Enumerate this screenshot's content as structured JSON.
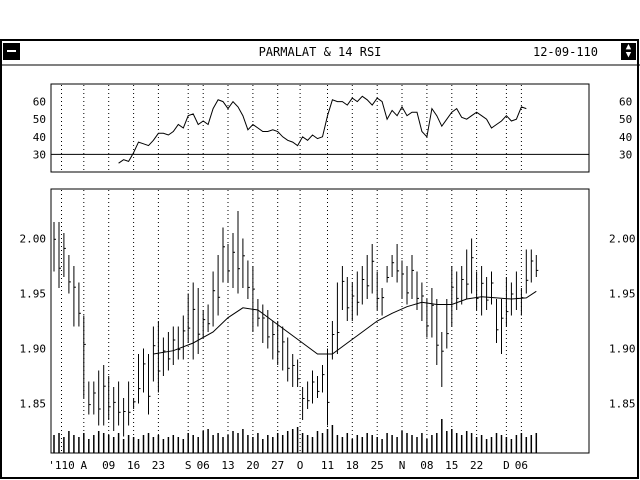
{
  "window": {
    "title": "PARMALAT & 14 RSI",
    "date": "12-09-110",
    "menu_icon": "system-menu-icon",
    "scroll_icon": "up-down-arrows-icon"
  },
  "chart_data": [
    {
      "type": "line",
      "panel": "rsi",
      "ylim": [
        20,
        70
      ],
      "yticks": [
        60,
        50,
        40,
        30
      ],
      "reference_line": 30,
      "x_range": [
        0,
        107
      ],
      "series": [
        {
          "values": [
            [
              13,
              25
            ],
            [
              14,
              27
            ],
            [
              15,
              26
            ],
            [
              16,
              31
            ],
            [
              17,
              37
            ],
            [
              18,
              36
            ],
            [
              19,
              35
            ],
            [
              20,
              38
            ],
            [
              21,
              42
            ],
            [
              22,
              42
            ],
            [
              23,
              41
            ],
            [
              24,
              43
            ],
            [
              25,
              47
            ],
            [
              26,
              45
            ],
            [
              27,
              52
            ],
            [
              28,
              53
            ],
            [
              29,
              47
            ],
            [
              30,
              49
            ],
            [
              31,
              47
            ],
            [
              32,
              56
            ],
            [
              33,
              61
            ],
            [
              34,
              60
            ],
            [
              35,
              56
            ],
            [
              36,
              60
            ],
            [
              37,
              57
            ],
            [
              38,
              52
            ],
            [
              39,
              44
            ],
            [
              40,
              47
            ],
            [
              41,
              45
            ],
            [
              42,
              43
            ],
            [
              43,
              43
            ],
            [
              44,
              44
            ],
            [
              45,
              43
            ],
            [
              46,
              40
            ],
            [
              47,
              38
            ],
            [
              48,
              37
            ],
            [
              49,
              35
            ],
            [
              50,
              40
            ],
            [
              51,
              38
            ],
            [
              52,
              41
            ],
            [
              53,
              39
            ],
            [
              54,
              40
            ],
            [
              55,
              52
            ],
            [
              56,
              61
            ],
            [
              57,
              60
            ],
            [
              58,
              60
            ],
            [
              59,
              58
            ],
            [
              60,
              62
            ],
            [
              61,
              60
            ],
            [
              62,
              63
            ],
            [
              63,
              61
            ],
            [
              64,
              58
            ],
            [
              65,
              62
            ],
            [
              66,
              60
            ],
            [
              67,
              50
            ],
            [
              68,
              55
            ],
            [
              69,
              52
            ],
            [
              70,
              57
            ],
            [
              71,
              52
            ],
            [
              72,
              54
            ],
            [
              73,
              54
            ],
            [
              74,
              43
            ],
            [
              75,
              40
            ],
            [
              76,
              56
            ],
            [
              77,
              52
            ],
            [
              78,
              46
            ],
            [
              79,
              50
            ],
            [
              80,
              54
            ],
            [
              81,
              56
            ],
            [
              82,
              51
            ],
            [
              83,
              50
            ],
            [
              84,
              52
            ],
            [
              85,
              54
            ],
            [
              86,
              52
            ],
            [
              87,
              50
            ],
            [
              88,
              45
            ],
            [
              89,
              47
            ],
            [
              90,
              49
            ],
            [
              91,
              52
            ],
            [
              92,
              49
            ],
            [
              93,
              50
            ],
            [
              94,
              57
            ],
            [
              95,
              56
            ]
          ]
        }
      ]
    },
    {
      "type": "ohlc",
      "panel": "price",
      "ylim": [
        1.805,
        2.045
      ],
      "yticks": [
        "2.00",
        "1.95",
        "1.90",
        "1.85"
      ],
      "x_range": [
        0,
        107
      ],
      "xtick_labels": [
        {
          "label": "'110",
          "x": 1.5
        },
        {
          "label": "A",
          "x": 6
        },
        {
          "label": "09",
          "x": 11
        },
        {
          "label": "16",
          "x": 16
        },
        {
          "label": "23",
          "x": 21
        },
        {
          "label": "S",
          "x": 27
        },
        {
          "label": "06",
          "x": 30
        },
        {
          "label": "13",
          "x": 35
        },
        {
          "label": "20",
          "x": 40
        },
        {
          "label": "27",
          "x": 45
        },
        {
          "label": "O",
          "x": 49.5
        },
        {
          "label": "11",
          "x": 55
        },
        {
          "label": "18",
          "x": 60
        },
        {
          "label": "25",
          "x": 65
        },
        {
          "label": "N",
          "x": 70
        },
        {
          "label": "08",
          "x": 75
        },
        {
          "label": "15",
          "x": 80
        },
        {
          "label": "22",
          "x": 85
        },
        {
          "label": "D",
          "x": 91
        },
        {
          "label": "06",
          "x": 94
        }
      ],
      "bars": [
        [
          0,
          1.97,
          2.015
        ],
        [
          1,
          1.955,
          2.015
        ],
        [
          2,
          1.965,
          2.005
        ],
        [
          3,
          1.95,
          1.985
        ],
        [
          4,
          1.92,
          1.975
        ],
        [
          5,
          1.92,
          1.96
        ],
        [
          6,
          1.855,
          1.93
        ],
        [
          7,
          1.84,
          1.87
        ],
        [
          8,
          1.84,
          1.87
        ],
        [
          9,
          1.83,
          1.88
        ],
        [
          10,
          1.83,
          1.885
        ],
        [
          11,
          1.835,
          1.875
        ],
        [
          12,
          1.825,
          1.865
        ],
        [
          13,
          1.83,
          1.87
        ],
        [
          14,
          1.82,
          1.855
        ],
        [
          15,
          1.83,
          1.87
        ],
        [
          16,
          1.845,
          1.855
        ],
        [
          17,
          1.85,
          1.895
        ],
        [
          18,
          1.86,
          1.9
        ],
        [
          19,
          1.84,
          1.895
        ],
        [
          20,
          1.87,
          1.92
        ],
        [
          21,
          1.86,
          1.925
        ],
        [
          22,
          1.875,
          1.91
        ],
        [
          23,
          1.88,
          1.915
        ],
        [
          24,
          1.885,
          1.92
        ],
        [
          25,
          1.89,
          1.92
        ],
        [
          26,
          1.89,
          1.93
        ],
        [
          27,
          1.905,
          1.95
        ],
        [
          28,
          1.89,
          1.96
        ],
        [
          29,
          1.895,
          1.955
        ],
        [
          30,
          1.91,
          1.935
        ],
        [
          31,
          1.915,
          1.94
        ],
        [
          32,
          1.92,
          1.97
        ],
        [
          33,
          1.93,
          1.985
        ],
        [
          34,
          1.96,
          2.01
        ],
        [
          35,
          1.96,
          1.995
        ],
        [
          36,
          1.955,
          2.005
        ],
        [
          37,
          1.95,
          2.025
        ],
        [
          38,
          1.955,
          2.0
        ],
        [
          39,
          1.945,
          1.98
        ],
        [
          40,
          1.915,
          1.975
        ],
        [
          41,
          1.92,
          1.945
        ],
        [
          42,
          1.905,
          1.94
        ],
        [
          43,
          1.9,
          1.935
        ],
        [
          44,
          1.89,
          1.925
        ],
        [
          45,
          1.885,
          1.925
        ],
        [
          46,
          1.88,
          1.92
        ],
        [
          47,
          1.87,
          1.91
        ],
        [
          48,
          1.865,
          1.895
        ],
        [
          49,
          1.865,
          1.89
        ],
        [
          50,
          1.835,
          1.865
        ],
        [
          51,
          1.845,
          1.87
        ],
        [
          52,
          1.85,
          1.88
        ],
        [
          53,
          1.855,
          1.875
        ],
        [
          54,
          1.86,
          1.885
        ],
        [
          55,
          1.83,
          1.9
        ],
        [
          56,
          1.89,
          1.925
        ],
        [
          57,
          1.895,
          1.96
        ],
        [
          58,
          1.935,
          1.975
        ],
        [
          59,
          1.925,
          1.965
        ],
        [
          60,
          1.925,
          1.96
        ],
        [
          61,
          1.93,
          1.97
        ],
        [
          62,
          1.94,
          1.975
        ],
        [
          63,
          1.945,
          1.985
        ],
        [
          64,
          1.95,
          1.995
        ],
        [
          65,
          1.935,
          1.97
        ],
        [
          66,
          1.93,
          1.955
        ],
        [
          67,
          1.96,
          1.975
        ],
        [
          68,
          1.965,
          1.985
        ],
        [
          69,
          1.96,
          1.995
        ],
        [
          70,
          1.945,
          1.98
        ],
        [
          71,
          1.94,
          1.975
        ],
        [
          72,
          1.945,
          1.985
        ],
        [
          73,
          1.935,
          1.97
        ],
        [
          74,
          1.925,
          1.96
        ],
        [
          75,
          1.91,
          1.945
        ],
        [
          76,
          1.91,
          1.955
        ],
        [
          77,
          1.885,
          1.945
        ],
        [
          78,
          1.865,
          1.915
        ],
        [
          79,
          1.9,
          1.945
        ],
        [
          80,
          1.92,
          1.975
        ],
        [
          81,
          1.935,
          1.97
        ],
        [
          82,
          1.94,
          1.975
        ],
        [
          83,
          1.945,
          1.99
        ],
        [
          84,
          1.95,
          2.0
        ],
        [
          85,
          1.935,
          1.97
        ],
        [
          86,
          1.93,
          1.975
        ],
        [
          87,
          1.935,
          1.965
        ],
        [
          88,
          1.94,
          1.97
        ],
        [
          89,
          1.905,
          1.945
        ],
        [
          90,
          1.895,
          1.945
        ],
        [
          91,
          1.92,
          1.965
        ],
        [
          92,
          1.93,
          1.96
        ],
        [
          93,
          1.935,
          1.97
        ],
        [
          94,
          1.93,
          1.955
        ],
        [
          95,
          1.95,
          1.99
        ],
        [
          96,
          1.96,
          1.99
        ],
        [
          97,
          1.965,
          1.985
        ]
      ],
      "moving_average": [
        [
          20,
          1.895
        ],
        [
          24,
          1.898
        ],
        [
          28,
          1.905
        ],
        [
          32,
          1.915
        ],
        [
          35,
          1.928
        ],
        [
          38,
          1.937
        ],
        [
          41,
          1.935
        ],
        [
          44,
          1.925
        ],
        [
          47,
          1.915
        ],
        [
          50,
          1.905
        ],
        [
          53,
          1.895
        ],
        [
          56,
          1.895
        ],
        [
          59,
          1.905
        ],
        [
          62,
          1.915
        ],
        [
          65,
          1.925
        ],
        [
          68,
          1.932
        ],
        [
          71,
          1.938
        ],
        [
          74,
          1.942
        ],
        [
          77,
          1.94
        ],
        [
          80,
          1.94
        ],
        [
          83,
          1.945
        ],
        [
          86,
          1.947
        ],
        [
          89,
          1.946
        ],
        [
          92,
          1.945
        ],
        [
          95,
          1.946
        ],
        [
          97,
          1.952
        ]
      ],
      "volume": [
        0.45,
        0.5,
        0.4,
        0.55,
        0.45,
        0.4,
        0.5,
        0.35,
        0.45,
        0.55,
        0.5,
        0.45,
        0.4,
        0.5,
        0.35,
        0.45,
        0.4,
        0.35,
        0.45,
        0.5,
        0.4,
        0.45,
        0.35,
        0.4,
        0.45,
        0.4,
        0.35,
        0.5,
        0.45,
        0.4,
        0.55,
        0.6,
        0.45,
        0.5,
        0.4,
        0.45,
        0.55,
        0.5,
        0.6,
        0.45,
        0.4,
        0.5,
        0.35,
        0.45,
        0.4,
        0.5,
        0.45,
        0.55,
        0.6,
        0.65,
        0.5,
        0.45,
        0.4,
        0.55,
        0.5,
        0.6,
        0.7,
        0.45,
        0.4,
        0.5,
        0.35,
        0.45,
        0.4,
        0.5,
        0.45,
        0.4,
        0.35,
        0.5,
        0.45,
        0.4,
        0.55,
        0.5,
        0.45,
        0.4,
        0.5,
        0.35,
        0.45,
        0.5,
        0.85,
        0.55,
        0.6,
        0.5,
        0.45,
        0.55,
        0.5,
        0.4,
        0.45,
        0.35,
        0.4,
        0.5,
        0.45,
        0.4,
        0.35,
        0.45,
        0.5,
        0.4,
        0.45,
        0.5
      ]
    }
  ]
}
